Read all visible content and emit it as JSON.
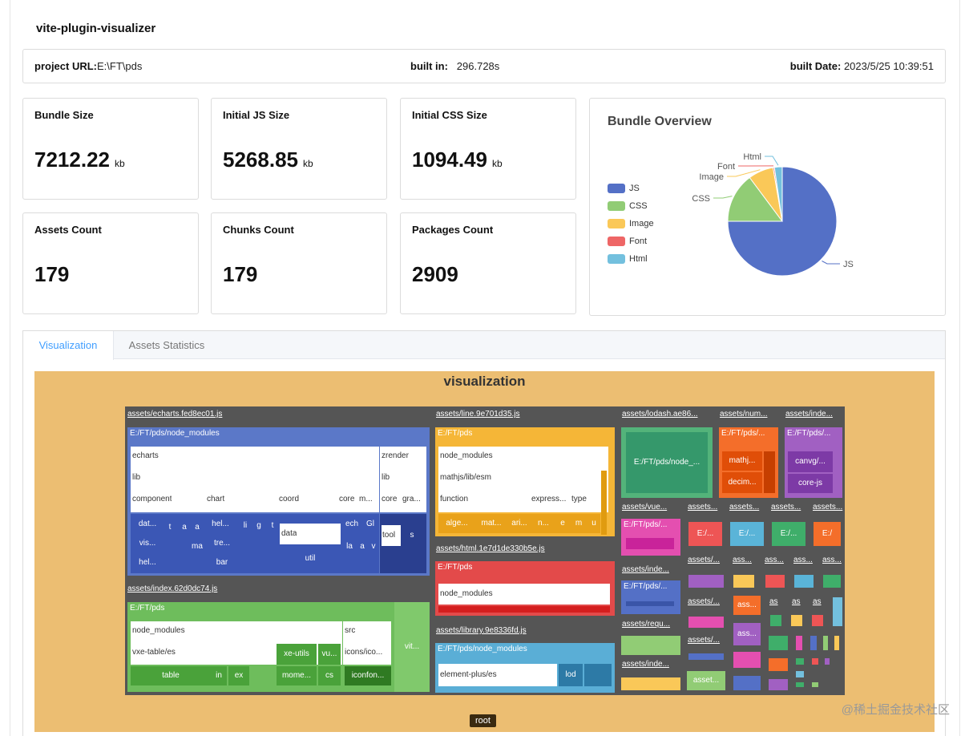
{
  "app": {
    "title": "vite-plugin-visualizer"
  },
  "info": {
    "project_label": "project URL:",
    "project_value": "E:\\FT\\pds",
    "built_in_label": "built in:",
    "built_in_value": "296.728s",
    "built_date_label": "built Date:",
    "built_date_value": "2023/5/25 10:39:51"
  },
  "stats": [
    {
      "label": "Bundle Size",
      "value": "7212.22",
      "unit": "kb"
    },
    {
      "label": "Initial JS Size",
      "value": "5268.85",
      "unit": "kb"
    },
    {
      "label": "Initial CSS Size",
      "value": "1094.49",
      "unit": "kb"
    },
    {
      "label": "Assets Count",
      "value": "179",
      "unit": ""
    },
    {
      "label": "Chunks Count",
      "value": "179",
      "unit": ""
    },
    {
      "label": "Packages Count",
      "value": "2909",
      "unit": ""
    }
  ],
  "overview": {
    "title": "Bundle Overview",
    "legend": [
      "JS",
      "CSS",
      "Image",
      "Font",
      "Html"
    ]
  },
  "chart_data": {
    "type": "pie",
    "title": "Bundle Overview",
    "categories": [
      "JS",
      "CSS",
      "Image",
      "Font",
      "Html"
    ],
    "values": [
      75.0,
      14.8,
      7.5,
      0.4,
      2.3
    ],
    "colors": [
      "#5470c6",
      "#91cc75",
      "#fac858",
      "#ee6666",
      "#73c0de"
    ],
    "legend_position": "left"
  },
  "tabs": [
    {
      "label": "Visualization"
    },
    {
      "label": "Assets Statistics"
    }
  ],
  "viz": {
    "title": "visualization",
    "root": "root",
    "echarts": {
      "header": "assets/echarts.fed8ec01.js",
      "path": "E:/FT/pds/node_modules",
      "echarts": "echarts",
      "zrender": "zrender",
      "lib": "lib",
      "lib2": "lib",
      "component": "component",
      "chart": "chart",
      "coord": "coord",
      "core": "core",
      "m": "m...",
      "core2": "core",
      "gra": "gra...",
      "dat": "dat...",
      "t": "t",
      "a1": "a",
      "a2": "a",
      "hel": "hel...",
      "li": "li",
      "g": "g",
      "t2": "t",
      "vis": "vis...",
      "ma": "ma",
      "tre": "tre...",
      "hel2": "hel...",
      "bar": "bar",
      "data": "data",
      "util": "util",
      "ech": "ech",
      "gl": "Gl",
      "la": "la",
      "a3": "a",
      "v": "v",
      "tool": "tool",
      "s": "s"
    },
    "index": {
      "header": "assets/index.62d0dc74.js",
      "path": "E:/FT/pds",
      "node_modules": "node_modules",
      "vxe": "vxe-table/es",
      "src": "src",
      "icons": "icons/ico...",
      "vxe_utils": "xe-utils",
      "vu": "vu...",
      "table": "table",
      "in": "in",
      "ex": "ex",
      "mome": "mome...",
      "cs": "cs",
      "iconfon": "iconfon...",
      "vit": "vit..."
    },
    "line": {
      "header": "assets/line.9e701d35.js",
      "path": "E:/FT/pds",
      "node_modules": "node_modules",
      "mathjs": "mathjs/lib/esm",
      "function": "function",
      "express": "express...",
      "type": "type",
      "alge": "alge...",
      "mat": "mat...",
      "ari": "ari...",
      "n": "n...",
      "e": "e",
      "m": "m",
      "u": "u"
    },
    "html": {
      "header": "assets/html.1e7d1de330b5e.js",
      "path": "E:/FT/pds",
      "node_modules": "node_modules"
    },
    "library": {
      "header": "assets/library.9e8336fd.js",
      "path": "E:/FT/pds/node_modules",
      "element": "element-plus/es",
      "lod": "lod"
    },
    "lodash": {
      "header": "assets/lodash.ae86...",
      "path": "E:/FT/pds/node_..."
    },
    "num": {
      "header": "assets/num...",
      "path": "E:/FT/pds/...",
      "mathj": "mathj...",
      "decim": "decim..."
    },
    "inde1": {
      "header": "assets/inde...",
      "path": "E:/FT/pds/...",
      "canvg": "canvg/...",
      "corejs": "core-js"
    },
    "small": {
      "vue_h": "assets/vue...",
      "vue_p": "E:/FT/pds/...",
      "inde2_h": "assets/inde...",
      "inde2_p": "E:/FT/pds/...",
      "requ_h": "assets/requ...",
      "inde3_h": "assets/inde...",
      "assets": "assets...",
      "ex1": "E:/...",
      "ex2": "E:/...",
      "ex3": "E:/...",
      "ex4": "E:/",
      "ass1": "ass...",
      "ass2": "ass...",
      "ass3": "ass...",
      "ass4": "ass...",
      "assets_f": "assets/...",
      "assets_g": "assets/...",
      "ass5": "ass...",
      "ass6": "ass...",
      "as1": "as",
      "as2": "as",
      "as3": "as",
      "asset": "asset..."
    }
  },
  "watermark": "@稀土掘金技术社区"
}
